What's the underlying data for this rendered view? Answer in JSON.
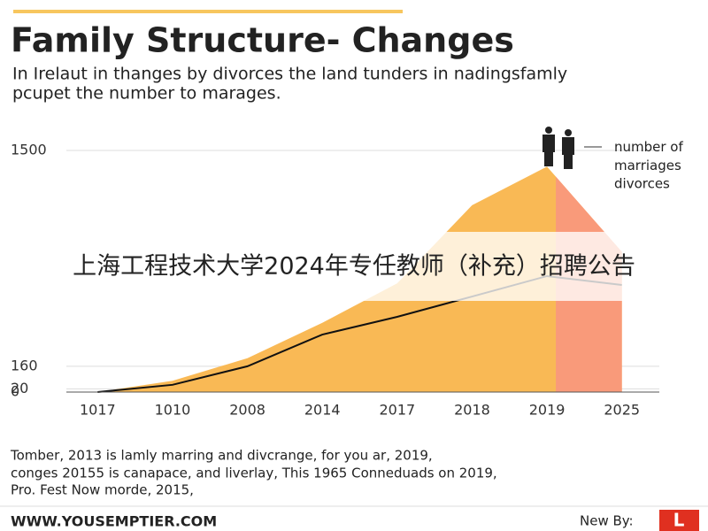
{
  "chart_data": {
    "type": "area-line",
    "title": "Family Structure- Changes",
    "subtitle": [
      "In Irelaut in thanges by divorces the land tunders in nadingsfamly",
      "pcupet the number to marages."
    ],
    "categories": [
      "1017",
      "1010",
      "2008",
      "2014",
      "2017",
      "2018",
      "2019",
      "2025"
    ],
    "series": [
      {
        "name": "number of marriages",
        "kind": "area",
        "color": "#f9b955",
        "values": [
          0,
          70,
          210,
          430,
          675,
          1160,
          1400,
          870
        ]
      },
      {
        "name": "divorces",
        "kind": "line",
        "color": "#111111",
        "values": [
          0,
          45,
          160,
          357,
          467,
          593,
          720,
          665
        ]
      }
    ],
    "highlight_from": "2019",
    "highlight_color": "#f99a7a",
    "ylim": [
      0,
      1500
    ],
    "yticks": [
      0,
      20,
      160,
      1500
    ],
    "grid": true,
    "banner": "上海工程技术大学2024年专任教师（补充）招聘公告",
    "notes": [
      "Tomber, 2013 is lamly marring and divcrange, for you ar, 2019,",
      "conges 20155 is canapace, and liverlay, This 1965 Conneduads on 2019,",
      "Pro. Fest Now morde, 2015,"
    ],
    "footer_url": "WWW.YOUSEMPTIER.COM",
    "footer_by": "New By:",
    "logo": "L"
  }
}
